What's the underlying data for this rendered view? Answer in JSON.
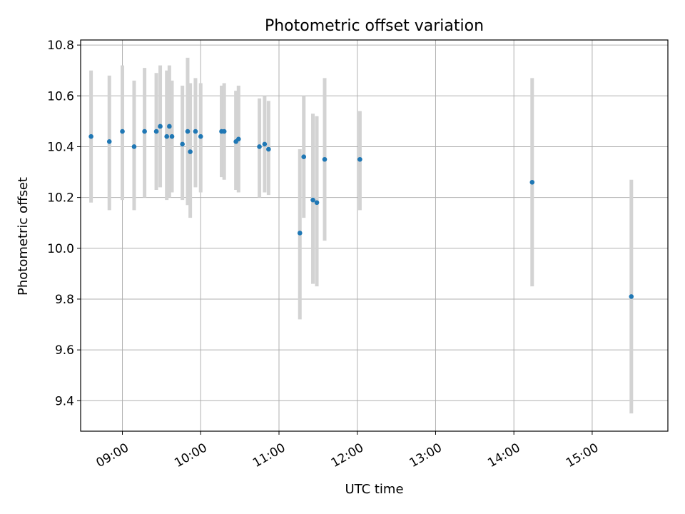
{
  "chart_data": {
    "type": "scatter",
    "title": "Photometric offset variation",
    "xlabel": "UTC time",
    "ylabel": "Photometric offset",
    "xlim": [
      "08:28",
      "15:58"
    ],
    "ylim": [
      9.28,
      10.82
    ],
    "x_ticks": [
      "09:00",
      "10:00",
      "11:00",
      "12:00",
      "13:00",
      "14:00",
      "15:00"
    ],
    "y_ticks": [
      9.4,
      9.6,
      9.8,
      10.0,
      10.2,
      10.4,
      10.6,
      10.8
    ],
    "y_tick_labels": [
      "9.4",
      "9.6",
      "9.8",
      "10.0",
      "10.2",
      "10.4",
      "10.6",
      "10.8"
    ],
    "grid": true,
    "legend": "none",
    "colors": {
      "point": "#1f77b4",
      "errorbar": "#d3d3d3",
      "grid": "#b0b0b0"
    },
    "series": [
      {
        "points": [
          {
            "x": "08:36",
            "y": 10.44,
            "lo": 10.18,
            "hi": 10.7
          },
          {
            "x": "08:50",
            "y": 10.42,
            "lo": 10.15,
            "hi": 10.68
          },
          {
            "x": "09:00",
            "y": 10.46,
            "lo": 10.19,
            "hi": 10.72
          },
          {
            "x": "09:09",
            "y": 10.4,
            "lo": 10.15,
            "hi": 10.66
          },
          {
            "x": "09:17",
            "y": 10.46,
            "lo": 10.2,
            "hi": 10.71
          },
          {
            "x": "09:26",
            "y": 10.46,
            "lo": 10.23,
            "hi": 10.69
          },
          {
            "x": "09:29",
            "y": 10.48,
            "lo": 10.24,
            "hi": 10.72
          },
          {
            "x": "09:34",
            "y": 10.44,
            "lo": 10.19,
            "hi": 10.7
          },
          {
            "x": "09:36",
            "y": 10.48,
            "lo": 10.2,
            "hi": 10.72
          },
          {
            "x": "09:38",
            "y": 10.44,
            "lo": 10.22,
            "hi": 10.66
          },
          {
            "x": "09:46",
            "y": 10.41,
            "lo": 10.19,
            "hi": 10.64
          },
          {
            "x": "09:50",
            "y": 10.46,
            "lo": 10.17,
            "hi": 10.75
          },
          {
            "x": "09:52",
            "y": 10.38,
            "lo": 10.12,
            "hi": 10.65
          },
          {
            "x": "09:56",
            "y": 10.46,
            "lo": 10.24,
            "hi": 10.67
          },
          {
            "x": "10:00",
            "y": 10.44,
            "lo": 10.22,
            "hi": 10.65
          },
          {
            "x": "10:16",
            "y": 10.46,
            "lo": 10.28,
            "hi": 10.64
          },
          {
            "x": "10:18",
            "y": 10.46,
            "lo": 10.27,
            "hi": 10.65
          },
          {
            "x": "10:27",
            "y": 10.42,
            "lo": 10.23,
            "hi": 10.62
          },
          {
            "x": "10:29",
            "y": 10.43,
            "lo": 10.22,
            "hi": 10.64
          },
          {
            "x": "10:45",
            "y": 10.4,
            "lo": 10.2,
            "hi": 10.59
          },
          {
            "x": "10:49",
            "y": 10.41,
            "lo": 10.22,
            "hi": 10.6
          },
          {
            "x": "10:52",
            "y": 10.39,
            "lo": 10.21,
            "hi": 10.58
          },
          {
            "x": "11:16",
            "y": 10.06,
            "lo": 9.72,
            "hi": 10.39
          },
          {
            "x": "11:19",
            "y": 10.36,
            "lo": 10.12,
            "hi": 10.6
          },
          {
            "x": "11:26",
            "y": 10.19,
            "lo": 9.86,
            "hi": 10.53
          },
          {
            "x": "11:29",
            "y": 10.18,
            "lo": 9.85,
            "hi": 10.52
          },
          {
            "x": "11:35",
            "y": 10.35,
            "lo": 10.03,
            "hi": 10.67
          },
          {
            "x": "12:02",
            "y": 10.35,
            "lo": 10.15,
            "hi": 10.54
          },
          {
            "x": "14:14",
            "y": 10.26,
            "lo": 9.85,
            "hi": 10.67
          },
          {
            "x": "15:30",
            "y": 9.81,
            "lo": 9.35,
            "hi": 10.27
          }
        ]
      }
    ]
  }
}
